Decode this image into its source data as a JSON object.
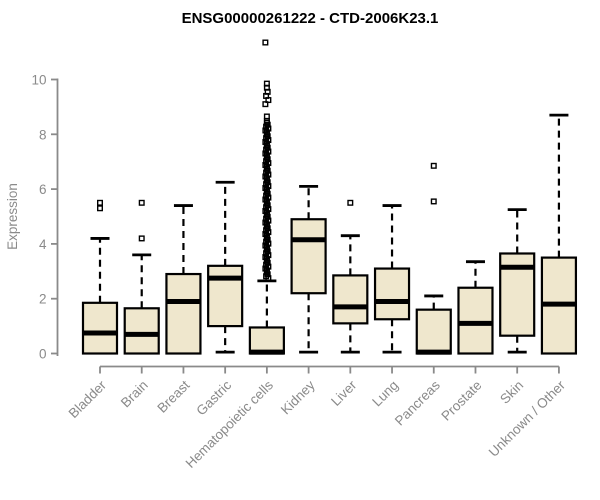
{
  "title": "ENSG00000261222 - CTD-2006K23.1",
  "colors": {
    "box_fill": "#EFE7CD",
    "box_stroke": "#000000",
    "median_color": "#000000",
    "whisker_color": "#000000",
    "axis_color": "#8A8A8A",
    "tick_label_color": "#8A8A8A",
    "title_color": "#000000",
    "background": "#FFFFFF"
  },
  "chart_data": {
    "type": "boxplot",
    "title": "ENSG00000261222 - CTD-2006K23.1",
    "xlabel": "",
    "ylabel": "Expression",
    "ylim": [
      0,
      11.4
    ],
    "yticks": [
      0,
      2,
      4,
      6,
      8,
      10
    ],
    "grid": false,
    "legend": "none",
    "categories": [
      "Bladder",
      "Brain",
      "Breast",
      "Gastric",
      "Hematopoietic cells",
      "Kidney",
      "Liver",
      "Lung",
      "Pancreas",
      "Prostate",
      "Skin",
      "Unknown / Other"
    ],
    "series": [
      {
        "name": "Bladder",
        "whisker_low": 0.0,
        "q1": 0.0,
        "median": 0.75,
        "q3": 1.85,
        "whisker_high": 4.2,
        "outliers": [
          5.3,
          5.5
        ]
      },
      {
        "name": "Brain",
        "whisker_low": 0.0,
        "q1": 0.0,
        "median": 0.7,
        "q3": 1.65,
        "whisker_high": 3.6,
        "outliers": [
          4.2,
          5.5
        ]
      },
      {
        "name": "Breast",
        "whisker_low": 0.0,
        "q1": 0.0,
        "median": 1.9,
        "q3": 2.9,
        "whisker_high": 5.4,
        "outliers": []
      },
      {
        "name": "Gastric",
        "whisker_low": 0.05,
        "q1": 1.0,
        "median": 2.75,
        "q3": 3.2,
        "whisker_high": 6.25,
        "outliers": []
      },
      {
        "name": "Hematopoietic cells",
        "whisker_low": 0.0,
        "q1": 0.0,
        "median": 0.05,
        "q3": 0.95,
        "whisker_high": 2.65,
        "outliers": [
          8.65,
          9.1,
          9.25,
          9.4,
          9.55,
          9.7,
          9.85,
          11.35
        ],
        "outliers_dense": {
          "from": 2.75,
          "to": 8.5,
          "step": 0.07
        }
      },
      {
        "name": "Kidney",
        "whisker_low": 0.05,
        "q1": 2.2,
        "median": 4.15,
        "q3": 4.9,
        "whisker_high": 6.1,
        "outliers": []
      },
      {
        "name": "Liver",
        "whisker_low": 0.05,
        "q1": 1.1,
        "median": 1.7,
        "q3": 2.85,
        "whisker_high": 4.3,
        "outliers": [
          5.5
        ]
      },
      {
        "name": "Lung",
        "whisker_low": 0.05,
        "q1": 1.25,
        "median": 1.9,
        "q3": 3.1,
        "whisker_high": 5.4,
        "outliers": []
      },
      {
        "name": "Pancreas",
        "whisker_low": 0.0,
        "q1": 0.0,
        "median": 0.05,
        "q3": 1.6,
        "whisker_high": 2.1,
        "outliers": [
          5.55,
          6.85
        ]
      },
      {
        "name": "Prostate",
        "whisker_low": 0.0,
        "q1": 0.0,
        "median": 1.1,
        "q3": 2.4,
        "whisker_high": 3.35,
        "outliers": []
      },
      {
        "name": "Skin",
        "whisker_low": 0.05,
        "q1": 0.65,
        "median": 3.15,
        "q3": 3.65,
        "whisker_high": 5.25,
        "outliers": []
      },
      {
        "name": "Unknown / Other",
        "whisker_low": 0.0,
        "q1": 0.0,
        "median": 1.8,
        "q3": 3.5,
        "whisker_high": 8.7,
        "outliers": []
      }
    ]
  }
}
